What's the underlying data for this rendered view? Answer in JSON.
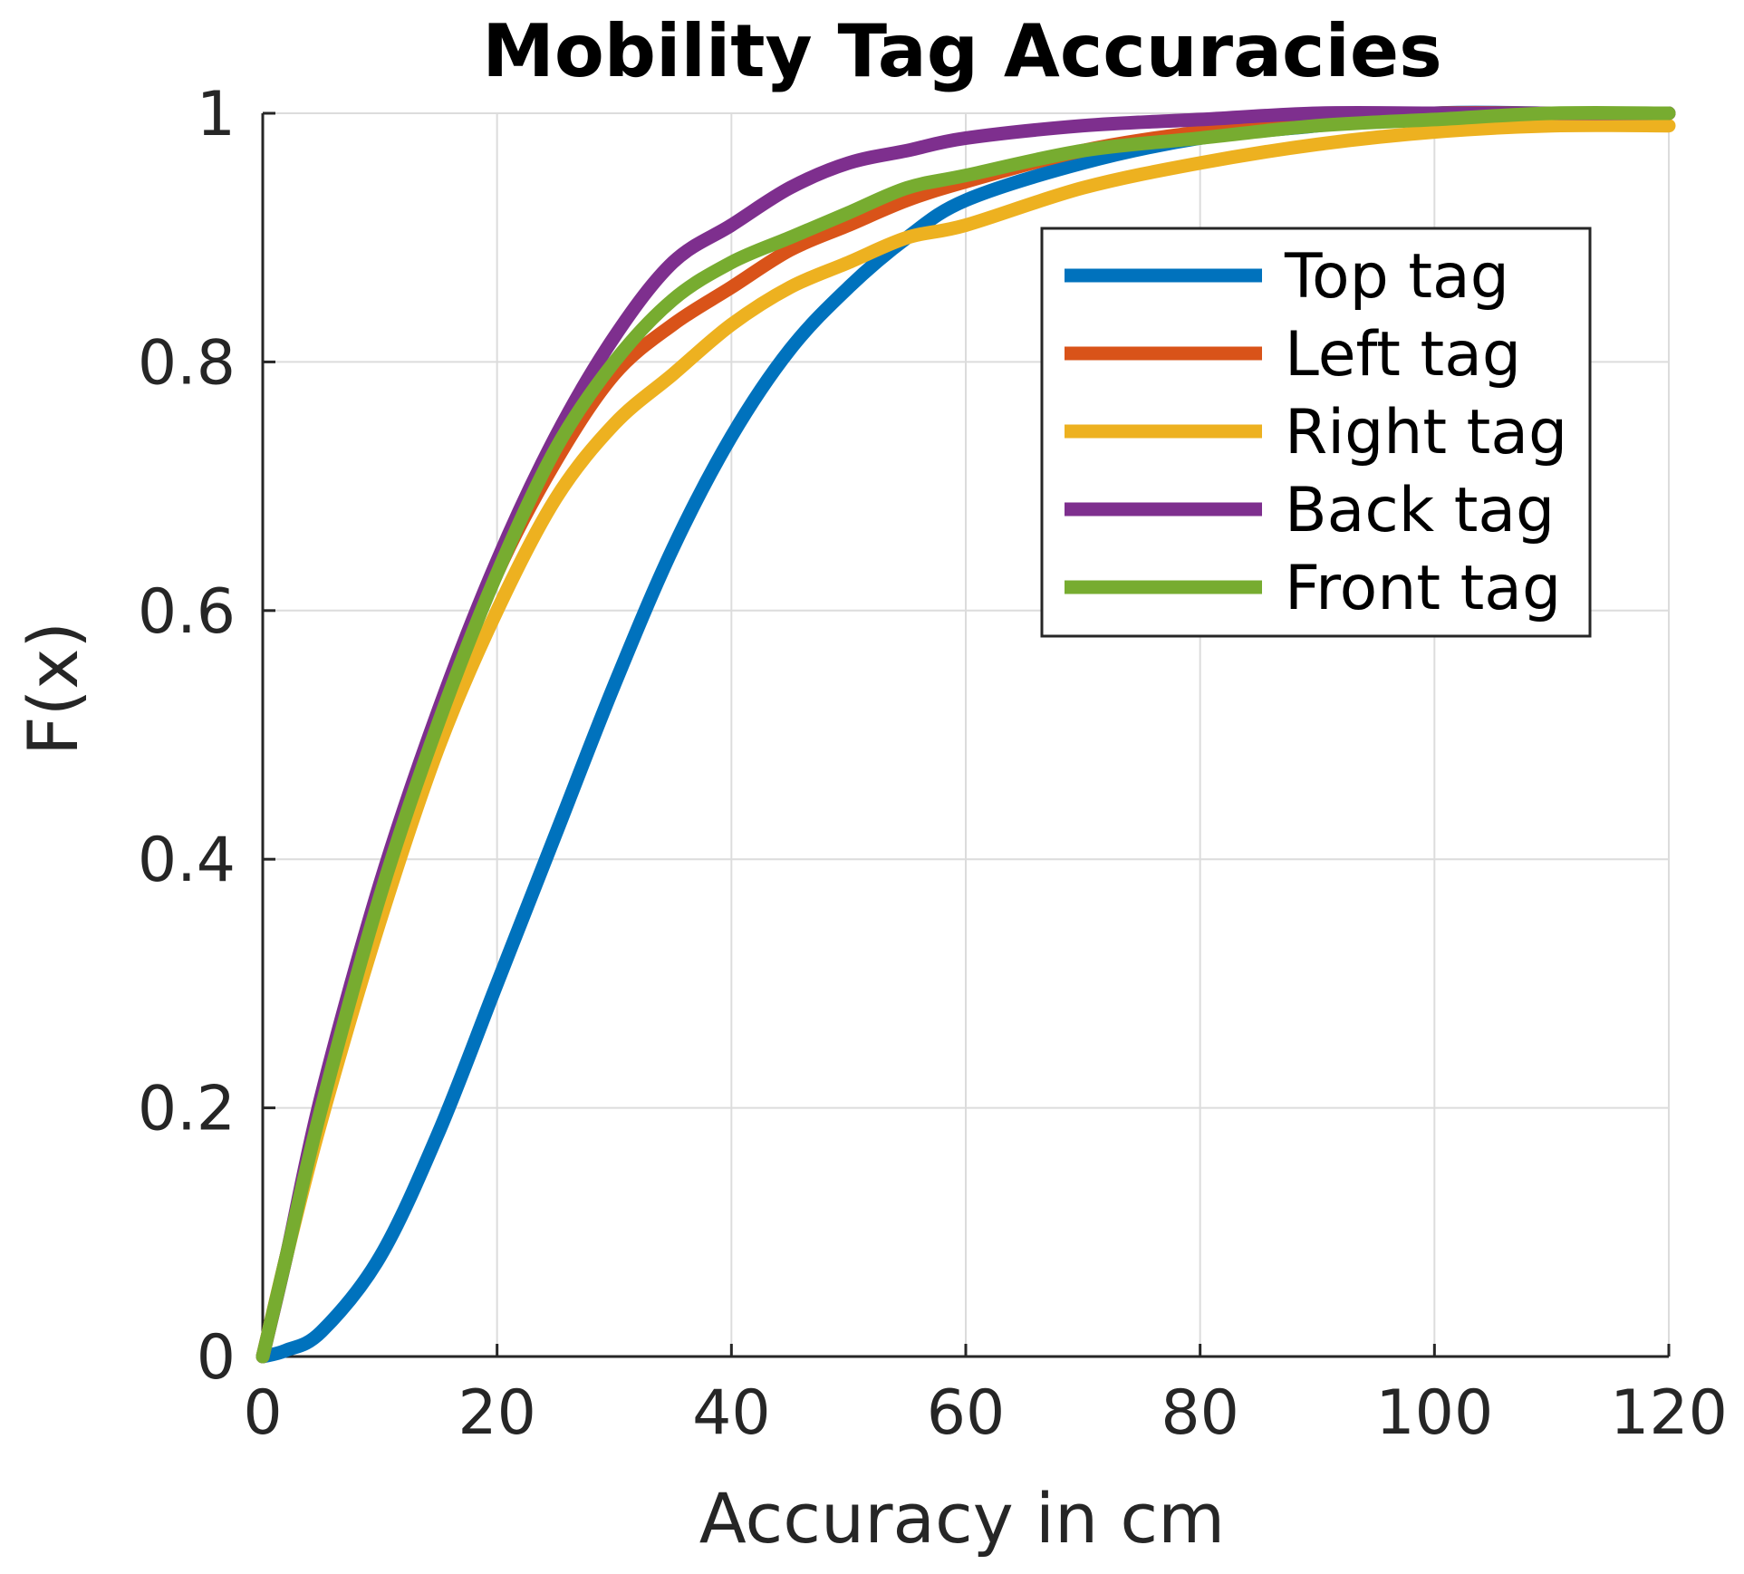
{
  "chart_data": {
    "type": "line",
    "title": "Mobility Tag Accuracies",
    "xlabel": "Accuracy in cm",
    "ylabel": "F(x)",
    "xlim": [
      0,
      120
    ],
    "ylim": [
      0,
      1
    ],
    "x_ticks": [
      0,
      20,
      40,
      60,
      80,
      100,
      120
    ],
    "x_tick_labels": [
      "0",
      "20",
      "40",
      "60",
      "80",
      "100",
      "120"
    ],
    "y_ticks": [
      0,
      0.2,
      0.4,
      0.6,
      0.8,
      1
    ],
    "y_tick_labels": [
      "0",
      "0.2",
      "0.4",
      "0.6",
      "0.8",
      "1"
    ],
    "grid": true,
    "legend_position": "top-right",
    "series": [
      {
        "name": "Top tag",
        "color": "#0072BD",
        "x": [
          0,
          2,
          5,
          10,
          15,
          20,
          25,
          30,
          35,
          40,
          45,
          50,
          55,
          60,
          70,
          80,
          90,
          100,
          110,
          120
        ],
        "y": [
          0,
          0.005,
          0.02,
          0.08,
          0.18,
          0.3,
          0.42,
          0.54,
          0.65,
          0.74,
          0.81,
          0.86,
          0.9,
          0.93,
          0.96,
          0.98,
          0.99,
          1.0,
          1.0,
          1.0
        ]
      },
      {
        "name": "Left tag",
        "color": "#D95319",
        "x": [
          0,
          2,
          5,
          10,
          15,
          20,
          25,
          30,
          35,
          40,
          45,
          50,
          55,
          60,
          70,
          80,
          90,
          100,
          110,
          120
        ],
        "y": [
          0,
          0.08,
          0.2,
          0.37,
          0.51,
          0.63,
          0.72,
          0.79,
          0.83,
          0.86,
          0.89,
          0.91,
          0.93,
          0.945,
          0.97,
          0.985,
          0.995,
          1.0,
          1.0,
          1.0
        ]
      },
      {
        "name": "Right tag",
        "color": "#EDB120",
        "x": [
          0,
          2,
          5,
          10,
          15,
          20,
          25,
          30,
          35,
          40,
          45,
          50,
          55,
          60,
          70,
          80,
          90,
          100,
          110,
          120
        ],
        "y": [
          0,
          0.08,
          0.19,
          0.35,
          0.49,
          0.6,
          0.69,
          0.75,
          0.79,
          0.83,
          0.86,
          0.88,
          0.9,
          0.91,
          0.94,
          0.96,
          0.975,
          0.985,
          0.99,
          0.99
        ]
      },
      {
        "name": "Back tag",
        "color": "#7E2F8E",
        "x": [
          0,
          2,
          5,
          10,
          15,
          20,
          25,
          30,
          35,
          40,
          45,
          50,
          55,
          60,
          70,
          80,
          90,
          100,
          110,
          120
        ],
        "y": [
          0,
          0.08,
          0.21,
          0.38,
          0.52,
          0.64,
          0.74,
          0.82,
          0.88,
          0.91,
          0.94,
          0.96,
          0.97,
          0.98,
          0.99,
          0.995,
          1.0,
          1.0,
          1.0,
          1.0
        ]
      },
      {
        "name": "Front tag",
        "color": "#77AC30",
        "x": [
          0,
          2,
          5,
          10,
          15,
          20,
          25,
          30,
          35,
          40,
          45,
          50,
          55,
          60,
          70,
          80,
          90,
          100,
          110,
          120
        ],
        "y": [
          0,
          0.08,
          0.2,
          0.37,
          0.51,
          0.63,
          0.73,
          0.8,
          0.85,
          0.88,
          0.9,
          0.92,
          0.94,
          0.95,
          0.97,
          0.98,
          0.99,
          0.995,
          1.0,
          1.0
        ]
      }
    ]
  }
}
